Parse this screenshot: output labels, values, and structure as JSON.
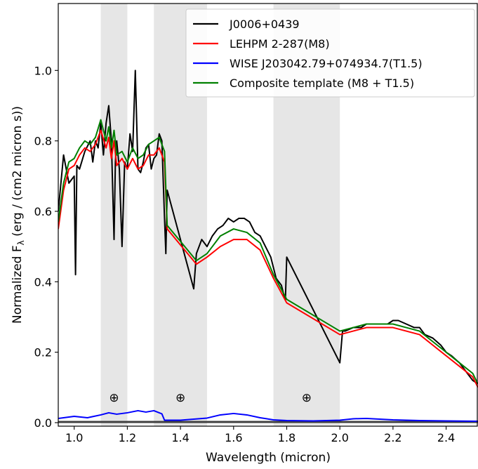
{
  "chart_data": {
    "type": "line",
    "xlabel": "Wavelength (micron)",
    "ylabel_main": "Normalized F",
    "ylabel_sub": "λ",
    "ylabel_rest": " (erg / (cm2 micron s))",
    "xlim": [
      0.94,
      2.52
    ],
    "ylim": [
      -0.01,
      1.19
    ],
    "x_ticks": [
      1.0,
      1.2,
      1.4,
      1.6,
      1.8,
      2.0,
      2.2,
      2.4
    ],
    "x_tick_labels": [
      "1.0",
      "1.2",
      "1.4",
      "1.6",
      "1.8",
      "2.0",
      "2.2",
      "2.4"
    ],
    "y_ticks": [
      0.0,
      0.2,
      0.4,
      0.6,
      0.8,
      1.0
    ],
    "y_tick_labels": [
      "0.0",
      "0.2",
      "0.4",
      "0.6",
      "0.8",
      "1.0"
    ],
    "grid": false,
    "legend_position": "top-right",
    "shaded_bands": [
      [
        1.1,
        1.2
      ],
      [
        1.3,
        1.5
      ],
      [
        1.75,
        2.0
      ]
    ],
    "telluric_markers": [
      {
        "x": 1.15,
        "y": 0.072,
        "label": "⊕"
      },
      {
        "x": 1.4,
        "y": 0.072,
        "label": "⊕"
      },
      {
        "x": 1.875,
        "y": 0.072,
        "label": "⊕"
      }
    ],
    "series": [
      {
        "name": "J0006+0439",
        "color": "#000000",
        "x": [
          0.94,
          0.96,
          0.98,
          1.0,
          1.005,
          1.01,
          1.02,
          1.04,
          1.06,
          1.07,
          1.08,
          1.09,
          1.1,
          1.11,
          1.12,
          1.13,
          1.14,
          1.15,
          1.155,
          1.16,
          1.17,
          1.18,
          1.19,
          1.2,
          1.21,
          1.22,
          1.23,
          1.24,
          1.25,
          1.26,
          1.27,
          1.28,
          1.29,
          1.3,
          1.31,
          1.32,
          1.33,
          1.34,
          1.345,
          1.35,
          1.45,
          1.46,
          1.48,
          1.5,
          1.52,
          1.54,
          1.56,
          1.58,
          1.6,
          1.62,
          1.64,
          1.66,
          1.68,
          1.7,
          1.72,
          1.74,
          1.75,
          1.76,
          1.78,
          1.79,
          1.795,
          1.8,
          2.0,
          2.01,
          2.02,
          2.05,
          2.08,
          2.1,
          2.12,
          2.15,
          2.18,
          2.2,
          2.22,
          2.25,
          2.28,
          2.3,
          2.32,
          2.35,
          2.38,
          2.4,
          2.42,
          2.45,
          2.48,
          2.5,
          2.52
        ],
        "values": [
          0.6,
          0.76,
          0.68,
          0.7,
          0.42,
          0.73,
          0.72,
          0.77,
          0.8,
          0.74,
          0.8,
          0.78,
          0.85,
          0.76,
          0.85,
          0.9,
          0.8,
          0.52,
          0.74,
          0.8,
          0.72,
          0.5,
          0.74,
          0.72,
          0.82,
          0.77,
          1.0,
          0.72,
          0.71,
          0.74,
          0.78,
          0.79,
          0.72,
          0.75,
          0.76,
          0.82,
          0.8,
          0.58,
          0.48,
          0.66,
          0.38,
          0.48,
          0.52,
          0.5,
          0.53,
          0.55,
          0.56,
          0.58,
          0.57,
          0.58,
          0.58,
          0.57,
          0.54,
          0.53,
          0.5,
          0.47,
          0.44,
          0.41,
          0.39,
          0.36,
          0.35,
          0.47,
          0.17,
          0.26,
          0.26,
          0.27,
          0.27,
          0.28,
          0.28,
          0.28,
          0.28,
          0.29,
          0.29,
          0.28,
          0.27,
          0.27,
          0.25,
          0.24,
          0.22,
          0.2,
          0.19,
          0.17,
          0.14,
          0.12,
          0.11
        ]
      },
      {
        "name": "LEHPM 2-287(M8)",
        "color": "#ff0000",
        "x": [
          0.94,
          0.96,
          0.98,
          1.0,
          1.02,
          1.04,
          1.06,
          1.08,
          1.1,
          1.12,
          1.13,
          1.14,
          1.15,
          1.16,
          1.18,
          1.2,
          1.22,
          1.24,
          1.26,
          1.28,
          1.3,
          1.32,
          1.34,
          1.35,
          1.46,
          1.5,
          1.55,
          1.6,
          1.65,
          1.7,
          1.75,
          1.8,
          2.0,
          2.05,
          2.1,
          2.15,
          2.2,
          2.25,
          2.3,
          2.35,
          2.4,
          2.45,
          2.5,
          2.52
        ],
        "values": [
          0.55,
          0.66,
          0.72,
          0.73,
          0.76,
          0.78,
          0.77,
          0.79,
          0.83,
          0.78,
          0.81,
          0.75,
          0.8,
          0.73,
          0.75,
          0.72,
          0.75,
          0.72,
          0.73,
          0.76,
          0.76,
          0.78,
          0.74,
          0.55,
          0.45,
          0.47,
          0.5,
          0.52,
          0.52,
          0.49,
          0.41,
          0.34,
          0.25,
          0.26,
          0.27,
          0.27,
          0.27,
          0.26,
          0.25,
          0.22,
          0.19,
          0.16,
          0.13,
          0.1
        ]
      },
      {
        "name": "WISE J203042.79+074934.7(T1.5)",
        "color": "#0000ff",
        "x": [
          0.94,
          1.0,
          1.05,
          1.1,
          1.13,
          1.16,
          1.2,
          1.24,
          1.27,
          1.3,
          1.33,
          1.34,
          1.4,
          1.45,
          1.5,
          1.55,
          1.6,
          1.65,
          1.7,
          1.75,
          1.8,
          1.9,
          2.0,
          2.05,
          2.1,
          2.15,
          2.2,
          2.3,
          2.4,
          2.52
        ],
        "values": [
          0.012,
          0.018,
          0.014,
          0.022,
          0.028,
          0.024,
          0.028,
          0.034,
          0.03,
          0.034,
          0.025,
          0.007,
          0.007,
          0.01,
          0.013,
          0.022,
          0.026,
          0.022,
          0.014,
          0.008,
          0.006,
          0.005,
          0.007,
          0.011,
          0.012,
          0.01,
          0.008,
          0.006,
          0.005,
          0.004
        ]
      },
      {
        "name": "Composite template (M8 + T1.5)",
        "color": "#008000",
        "x": [
          0.94,
          0.96,
          0.98,
          1.0,
          1.02,
          1.04,
          1.06,
          1.08,
          1.1,
          1.12,
          1.13,
          1.14,
          1.15,
          1.16,
          1.18,
          1.2,
          1.22,
          1.24,
          1.26,
          1.28,
          1.3,
          1.32,
          1.34,
          1.35,
          1.46,
          1.5,
          1.55,
          1.6,
          1.65,
          1.7,
          1.75,
          1.8,
          2.0,
          2.05,
          2.1,
          2.15,
          2.2,
          2.25,
          2.3,
          2.35,
          2.4,
          2.45,
          2.5,
          2.52
        ],
        "values": [
          0.57,
          0.68,
          0.74,
          0.75,
          0.78,
          0.8,
          0.79,
          0.81,
          0.86,
          0.8,
          0.84,
          0.78,
          0.83,
          0.76,
          0.77,
          0.74,
          0.78,
          0.75,
          0.76,
          0.79,
          0.8,
          0.81,
          0.77,
          0.56,
          0.46,
          0.48,
          0.53,
          0.55,
          0.54,
          0.51,
          0.42,
          0.35,
          0.26,
          0.27,
          0.28,
          0.28,
          0.28,
          0.27,
          0.26,
          0.23,
          0.2,
          0.17,
          0.14,
          0.11
        ]
      }
    ],
    "noise_series": {
      "color": "#404040",
      "x": [
        0.94,
        2.52
      ],
      "values": [
        0.002,
        0.002
      ]
    }
  }
}
